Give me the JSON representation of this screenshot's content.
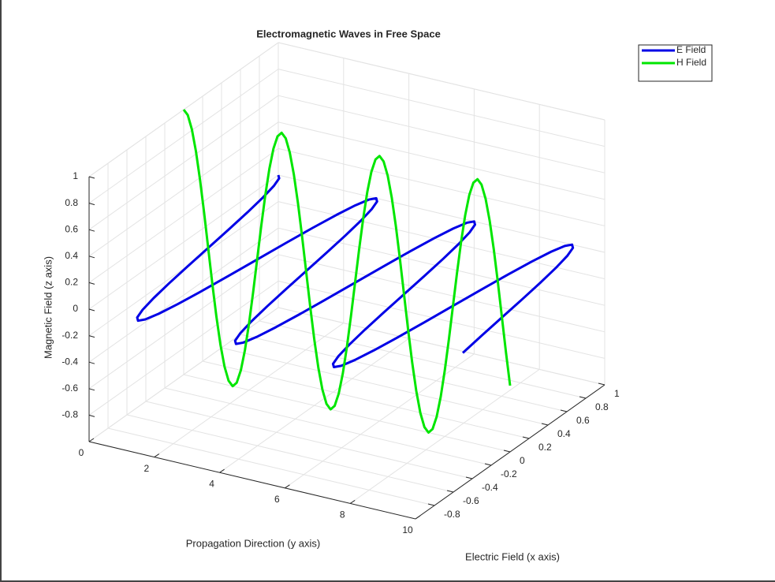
{
  "chart_data": {
    "type": "line3d",
    "title": "Electromagnetic Waves in Free Space",
    "xlabel": "Electric Field (x axis)",
    "ylabel": "Propagation Direction (y axis)",
    "zlabel": "Magnetic Field (z axis)",
    "propagation": [
      0,
      0.125,
      0.25,
      0.375,
      0.5,
      0.625,
      0.75,
      0.875,
      1,
      1.125,
      1.25,
      1.375,
      1.5,
      1.625,
      1.75,
      1.875,
      2,
      2.125,
      2.25,
      2.375,
      2.5,
      2.625,
      2.75,
      2.875,
      3,
      3.125,
      3.25,
      3.375,
      3.5,
      3.625,
      3.75,
      3.875,
      4,
      4.125,
      4.25,
      4.375,
      4.5,
      4.625,
      4.75,
      4.875,
      5,
      5.125,
      5.25,
      5.375,
      5.5,
      5.625,
      5.75,
      5.875,
      6,
      6.125,
      6.25,
      6.375,
      6.5,
      6.625,
      6.75,
      6.875,
      7,
      7.125,
      7.25,
      7.375,
      7.5,
      7.625,
      7.75,
      7.875,
      8,
      8.125,
      8.25,
      8.375,
      8.5,
      8.625,
      8.75,
      8.875,
      9,
      9.125,
      9.25,
      9.375,
      9.5,
      9.625,
      9.75,
      9.875,
      10
    ],
    "series": [
      {
        "name": "E Field",
        "color": "#0000e6",
        "axis": "x",
        "values": [
          1,
          0.966,
          0.866,
          0.707,
          0.5,
          0.259,
          0,
          -0.259,
          -0.5,
          -0.707,
          -0.866,
          -0.966,
          -1,
          -0.966,
          -0.866,
          -0.707,
          -0.5,
          -0.259,
          0,
          0.259,
          0.5,
          0.707,
          0.866,
          0.966,
          1,
          0.966,
          0.866,
          0.707,
          0.5,
          0.259,
          0,
          -0.259,
          -0.5,
          -0.707,
          -0.866,
          -0.966,
          -1,
          -0.966,
          -0.866,
          -0.707,
          -0.5,
          -0.259,
          0,
          0.259,
          0.5,
          0.707,
          0.866,
          0.966,
          1,
          0.966,
          0.866,
          0.707,
          0.5,
          0.259,
          0,
          -0.259,
          -0.5,
          -0.707,
          -0.866,
          -0.966,
          -1,
          -0.966,
          -0.866,
          -0.707,
          -0.5,
          -0.259,
          0,
          0.259,
          0.5,
          0.707,
          0.866,
          0.966,
          1,
          0.966,
          0.866,
          0.707,
          0.5,
          0.259,
          0,
          -0.259,
          -0.5
        ]
      },
      {
        "name": "H Field",
        "color": "#00e600",
        "axis": "z",
        "values": [
          1,
          0.966,
          0.866,
          0.707,
          0.5,
          0.259,
          0,
          -0.259,
          -0.5,
          -0.707,
          -0.866,
          -0.966,
          -1,
          -0.966,
          -0.866,
          -0.707,
          -0.5,
          -0.259,
          0,
          0.259,
          0.5,
          0.707,
          0.866,
          0.966,
          1,
          0.966,
          0.866,
          0.707,
          0.5,
          0.259,
          0,
          -0.259,
          -0.5,
          -0.707,
          -0.866,
          -0.966,
          -1,
          -0.966,
          -0.866,
          -0.707,
          -0.5,
          -0.259,
          0,
          0.259,
          0.5,
          0.707,
          0.866,
          0.966,
          1,
          0.966,
          0.866,
          0.707,
          0.5,
          0.259,
          0,
          -0.259,
          -0.5,
          -0.707,
          -0.866,
          -0.966,
          -1,
          -0.966,
          -0.866,
          -0.707,
          -0.5,
          -0.259,
          0,
          0.259,
          0.5,
          0.707,
          0.866,
          0.966,
          1,
          0.966,
          0.866,
          0.707,
          0.5,
          0.259,
          0,
          -0.259,
          -0.5
        ]
      }
    ],
    "xlim": [
      -1,
      1
    ],
    "xticks": [
      -0.8,
      -0.6,
      -0.4,
      -0.2,
      0,
      0.2,
      0.4,
      0.6,
      0.8,
      1
    ],
    "ylim": [
      0,
      10
    ],
    "yticks": [
      0,
      2,
      4,
      6,
      8,
      10
    ],
    "zlim": [
      -1,
      1
    ],
    "zticks": [
      -0.8,
      -0.6,
      -0.4,
      -0.2,
      0,
      0.2,
      0.4,
      0.6,
      0.8,
      1
    ],
    "grid": true,
    "legend": "northeast"
  }
}
